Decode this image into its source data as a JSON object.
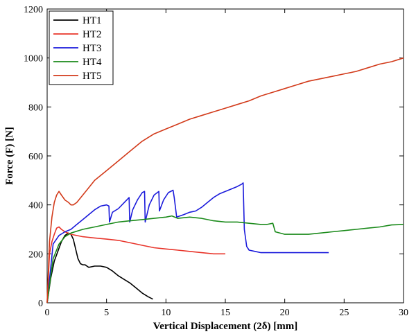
{
  "chart_data": {
    "type": "line",
    "title": "",
    "xlabel": "Vertical Displacement (2δ) [mm]",
    "ylabel": "Force (F) [N]",
    "xlim": [
      0,
      30
    ],
    "ylim": [
      0,
      1200
    ],
    "xticks": [
      0,
      5,
      10,
      15,
      20,
      25,
      30
    ],
    "yticks": [
      0,
      200,
      400,
      600,
      800,
      1000,
      1200
    ],
    "grid": false,
    "legend_position": "top-left",
    "series": [
      {
        "name": "HT1",
        "color": "#000000",
        "x": [
          0,
          0.3,
          0.6,
          0.9,
          1.2,
          1.5,
          1.8,
          2.0,
          2.2,
          2.4,
          2.6,
          2.8,
          3.0,
          3.2,
          3.5,
          4.0,
          4.5,
          5.0,
          5.5,
          6.0,
          6.5,
          7.0,
          7.5,
          8.0,
          8.5,
          8.9
        ],
        "y": [
          0,
          100,
          170,
          210,
          250,
          275,
          285,
          280,
          260,
          220,
          180,
          160,
          155,
          155,
          145,
          150,
          150,
          145,
          130,
          110,
          95,
          80,
          60,
          40,
          25,
          15
        ]
      },
      {
        "name": "HT2",
        "color": "#e8342a",
        "x": [
          0,
          0.2,
          0.4,
          0.6,
          0.8,
          1.0,
          1.2,
          1.5,
          2.0,
          3.0,
          4.0,
          5.0,
          6.0,
          7.0,
          8.0,
          9.0,
          10.0,
          11.0,
          12.0,
          13.0,
          14.0,
          15.0
        ],
        "y": [
          0,
          200,
          250,
          280,
          305,
          310,
          300,
          290,
          280,
          270,
          265,
          260,
          255,
          245,
          235,
          225,
          220,
          215,
          210,
          205,
          200,
          200
        ]
      },
      {
        "name": "HT3",
        "color": "#1a1adb",
        "x": [
          0,
          0.5,
          1.0,
          1.5,
          2.0,
          2.5,
          3.0,
          3.5,
          4.0,
          4.5,
          5.0,
          5.2,
          5.25,
          5.5,
          6.0,
          6.5,
          6.9,
          6.95,
          7.2,
          7.6,
          8.0,
          8.2,
          8.25,
          8.6,
          9.0,
          9.4,
          9.45,
          9.8,
          10.2,
          10.6,
          10.7,
          10.9,
          11.5,
          12.0,
          12.5,
          13.0,
          13.5,
          14.0,
          14.5,
          15.0,
          15.5,
          16.0,
          16.4,
          16.5,
          16.6,
          16.8,
          17.0,
          17.5,
          18.0,
          19.0,
          20.0,
          21.0,
          22.0,
          23.0,
          23.7
        ],
        "y": [
          0,
          240,
          275,
          290,
          300,
          320,
          340,
          360,
          380,
          395,
          400,
          395,
          330,
          370,
          385,
          410,
          430,
          330,
          380,
          420,
          450,
          455,
          330,
          400,
          440,
          455,
          375,
          420,
          450,
          460,
          430,
          350,
          360,
          370,
          375,
          390,
          410,
          430,
          445,
          455,
          465,
          475,
          485,
          490,
          300,
          230,
          215,
          210,
          205,
          205,
          205,
          205,
          205,
          205,
          205
        ]
      },
      {
        "name": "HT4",
        "color": "#1a8a1a",
        "x": [
          0,
          0.5,
          1.0,
          1.5,
          2.0,
          3.0,
          4.0,
          5.0,
          6.0,
          7.0,
          8.0,
          9.0,
          10.0,
          10.5,
          11.0,
          12.0,
          13.0,
          14.0,
          15.0,
          16.0,
          17.0,
          18.0,
          18.5,
          19.0,
          19.2,
          20.0,
          21.0,
          22.0,
          23.0,
          24.0,
          25.0,
          26.0,
          27.0,
          28.0,
          29.0,
          30.0
        ],
        "y": [
          0,
          180,
          240,
          270,
          285,
          300,
          310,
          320,
          330,
          335,
          340,
          345,
          350,
          355,
          345,
          350,
          345,
          335,
          330,
          330,
          325,
          320,
          320,
          325,
          290,
          280,
          280,
          280,
          285,
          290,
          295,
          300,
          305,
          310,
          318,
          320
        ]
      },
      {
        "name": "HT5",
        "color": "#d23a1a",
        "x": [
          0,
          0.2,
          0.4,
          0.6,
          0.8,
          1.0,
          1.2,
          1.5,
          1.8,
          2.0,
          2.2,
          2.5,
          3.0,
          3.5,
          4.0,
          5.0,
          6.0,
          7.0,
          8.0,
          9.0,
          10.0,
          11.0,
          12.0,
          13.0,
          14.0,
          15.0,
          16.0,
          17.0,
          18.0,
          19.0,
          20.0,
          21.0,
          22.0,
          23.0,
          24.0,
          25.0,
          26.0,
          27.0,
          28.0,
          29.0,
          30.0
        ],
        "y": [
          0,
          250,
          350,
          410,
          440,
          455,
          440,
          420,
          410,
          400,
          400,
          410,
          440,
          470,
          500,
          540,
          580,
          620,
          660,
          690,
          710,
          730,
          750,
          765,
          780,
          795,
          810,
          825,
          845,
          860,
          875,
          890,
          905,
          915,
          925,
          935,
          945,
          960,
          975,
          985,
          1000
        ]
      }
    ]
  }
}
